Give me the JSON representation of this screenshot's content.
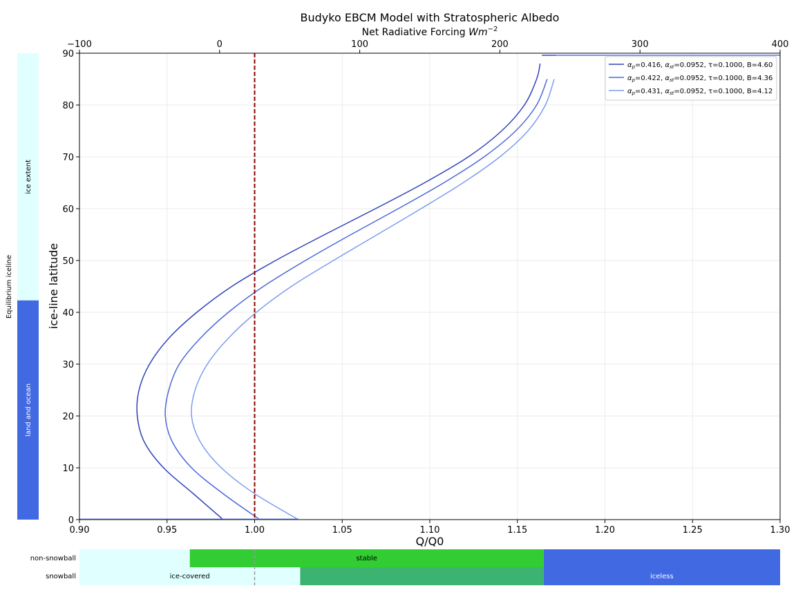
{
  "chart_data": {
    "type": "line",
    "title": "Budyko EBCM Model with Stratospheric Albedo",
    "xlabel": "Q/Q0",
    "ylabel": "ice-line latitude",
    "top_xlabel": "Net Radiative Forcing",
    "top_xlabel_unit_base": "Wm",
    "top_xlabel_unit_exp": "−2",
    "xlim": [
      0.9,
      1.3
    ],
    "ylim": [
      0,
      90
    ],
    "top_xlim": [
      -100,
      400
    ],
    "xticks": [
      "0.90",
      "0.95",
      "1.00",
      "1.05",
      "1.10",
      "1.15",
      "1.20",
      "1.25",
      "1.30"
    ],
    "yticks": [
      "0",
      "10",
      "20",
      "30",
      "40",
      "50",
      "60",
      "70",
      "80",
      "90"
    ],
    "top_xticks": [
      "−100",
      "0",
      "100",
      "200",
      "300",
      "400"
    ],
    "top_xtick_values": [
      -100,
      0,
      100,
      200,
      300,
      400
    ],
    "grid": true,
    "legend_position": "top-right",
    "reference_line": {
      "x": 1.0,
      "color": "#8b0000",
      "style": "dashed"
    },
    "series": [
      {
        "name": "αp=0.416, αst=0.0952, τ=0.1000, B=4.60",
        "label_parts": [
          "=0.416, ",
          "=0.0952, τ=0.1000, B=4.60"
        ],
        "color": "#3040b8",
        "points": [
          [
            0.982,
            0
          ],
          [
            0.965,
            5
          ],
          [
            0.948,
            10
          ],
          [
            0.937,
            15
          ],
          [
            0.933,
            20
          ],
          [
            0.934,
            25
          ],
          [
            0.94,
            30
          ],
          [
            0.951,
            35
          ],
          [
            0.967,
            40
          ],
          [
            0.987,
            45
          ],
          [
            1.012,
            50
          ],
          [
            1.04,
            55
          ],
          [
            1.069,
            60
          ],
          [
            1.097,
            65
          ],
          [
            1.122,
            70
          ],
          [
            1.141,
            75
          ],
          [
            1.154,
            80
          ],
          [
            1.161,
            85
          ],
          [
            1.163,
            88
          ],
          [
            1.164,
            89.6
          ],
          [
            1.3,
            89.6
          ]
        ],
        "snowball_line": [
          [
            0.9,
            0.1
          ],
          [
            0.982,
            0.1
          ]
        ]
      },
      {
        "name": "αp=0.422, αst=0.0952, τ=0.1000, B=4.36",
        "label_parts": [
          "=0.422, ",
          "=0.0952, τ=0.1000, B=4.36"
        ],
        "color": "#4a68d8",
        "points": [
          [
            1.003,
            0
          ],
          [
            0.982,
            5
          ],
          [
            0.964,
            10
          ],
          [
            0.953,
            15
          ],
          [
            0.949,
            20
          ],
          [
            0.951,
            25
          ],
          [
            0.957,
            30
          ],
          [
            0.969,
            35
          ],
          [
            0.985,
            40
          ],
          [
            1.005,
            45
          ],
          [
            1.029,
            50
          ],
          [
            1.055,
            55
          ],
          [
            1.082,
            60
          ],
          [
            1.108,
            65
          ],
          [
            1.131,
            70
          ],
          [
            1.149,
            75
          ],
          [
            1.161,
            80
          ],
          [
            1.167,
            85
          ],
          [
            1.168,
            89.6
          ],
          [
            1.3,
            89.6
          ]
        ],
        "snowball_line": [
          [
            0.9,
            0.1
          ],
          [
            1.003,
            0.1
          ]
        ]
      },
      {
        "name": "αp=0.431, αst=0.0952, τ=0.1000, B=4.12",
        "label_parts": [
          "=0.431, ",
          "=0.0952, τ=0.1000, B=4.12"
        ],
        "color": "#7b9cf0",
        "points": [
          [
            1.025,
            0
          ],
          [
            1.0,
            5
          ],
          [
            0.981,
            10
          ],
          [
            0.969,
            15
          ],
          [
            0.964,
            20
          ],
          [
            0.966,
            25
          ],
          [
            0.973,
            30
          ],
          [
            0.985,
            35
          ],
          [
            1.001,
            40
          ],
          [
            1.021,
            45
          ],
          [
            1.045,
            50
          ],
          [
            1.07,
            55
          ],
          [
            1.095,
            60
          ],
          [
            1.119,
            65
          ],
          [
            1.14,
            70
          ],
          [
            1.156,
            75
          ],
          [
            1.166,
            80
          ],
          [
            1.171,
            85
          ],
          [
            1.172,
            89.6
          ],
          [
            1.3,
            89.6
          ]
        ],
        "snowball_line": [
          [
            0.9,
            0.1
          ],
          [
            1.025,
            0.1
          ]
        ]
      }
    ],
    "left_bar": {
      "label": "Equilibrium iceline",
      "boundary_lat": 42.3,
      "upper": {
        "label": "ice extent",
        "color": "#e0ffff"
      },
      "lower": {
        "label": "land and ocean",
        "color": "#4169e1"
      }
    },
    "bottom_bar": {
      "rows": [
        {
          "label": "non-snowball",
          "segments": [
            {
              "from": 0.9,
              "to": 0.963,
              "color": "#e0ffff",
              "text": ""
            },
            {
              "from": 0.963,
              "to": 1.165,
              "color": "#32cd32",
              "text": "stable"
            },
            {
              "from": 1.165,
              "to": 1.3,
              "color": "#4169e1",
              "text": ""
            }
          ]
        },
        {
          "label": "snowball",
          "segments": [
            {
              "from": 0.9,
              "to": 1.026,
              "color": "#e0ffff",
              "text": "ice-covered"
            },
            {
              "from": 1.026,
              "to": 1.165,
              "color": "#3cb371",
              "text": ""
            },
            {
              "from": 1.165,
              "to": 1.3,
              "color": "#4169e1",
              "text": "iceless"
            }
          ]
        }
      ]
    }
  }
}
